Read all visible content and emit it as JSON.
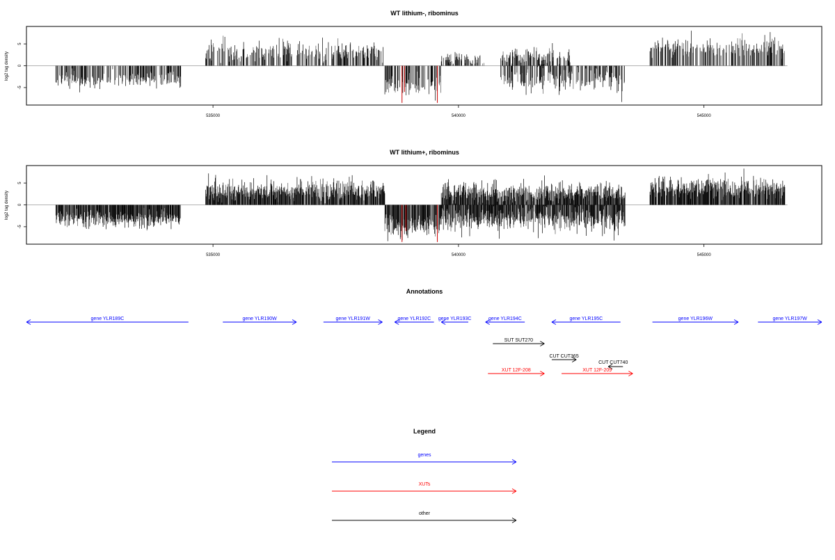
{
  "chart_data": [
    {
      "type": "bar",
      "title": "WT lithium-, ribominus",
      "ylabel": "log2 tag density",
      "xlim": [
        531200,
        547400
      ],
      "ylim": [
        -9,
        9
      ],
      "xticks": [
        535000,
        540000,
        545000
      ],
      "yticks": [
        -5,
        0,
        5
      ],
      "baseline": {
        "from": 531200,
        "to": 546700,
        "color": "#999999"
      },
      "bar_color": "#000000",
      "highlight_color": "#cc0000",
      "highlights": [
        {
          "x": 538850,
          "y": -8.5
        },
        {
          "x": 538900,
          "y": -6.0
        },
        {
          "x": 539570,
          "y": -8.5
        }
      ],
      "density": 0.55,
      "segments": [
        {
          "from": 531800,
          "to": 534350,
          "sign": -1,
          "amp": 3.2,
          "var": 1.2
        },
        {
          "from": 534850,
          "to": 538500,
          "sign": 1,
          "amp": 3.2,
          "var": 1.5
        },
        {
          "from": 538500,
          "to": 539650,
          "sign": -1,
          "amp": 4.5,
          "var": 1.5
        },
        {
          "from": 539650,
          "to": 540550,
          "sign": 1,
          "amp": 1.4,
          "var": 1.0
        },
        {
          "from": 540850,
          "to": 543400,
          "sign": -1,
          "amp": 3.2,
          "var": 1.6
        },
        {
          "from": 540850,
          "to": 542300,
          "sign": 1,
          "amp": 2.0,
          "var": 1.2
        },
        {
          "from": 543900,
          "to": 546650,
          "sign": 1,
          "amp": 4.0,
          "var": 1.4
        }
      ]
    },
    {
      "type": "bar",
      "title": "WT lithium+, ribominus",
      "ylabel": "log2 tag density",
      "xlim": [
        531200,
        547400
      ],
      "ylim": [
        -9,
        9
      ],
      "xticks": [
        535000,
        540000,
        545000
      ],
      "yticks": [
        -5,
        0,
        5
      ],
      "baseline": {
        "from": 531200,
        "to": 546700,
        "color": "#999999"
      },
      "bar_color": "#000000",
      "highlight_color": "#cc0000",
      "highlights": [
        {
          "x": 538850,
          "y": -8.5
        },
        {
          "x": 538930,
          "y": -6.0
        },
        {
          "x": 539570,
          "y": -8.5
        }
      ],
      "density": 0.9,
      "segments": [
        {
          "from": 531800,
          "to": 534350,
          "sign": -1,
          "amp": 3.2,
          "var": 1.3
        },
        {
          "from": 534850,
          "to": 538500,
          "sign": 1,
          "amp": 3.2,
          "var": 1.5
        },
        {
          "from": 538500,
          "to": 539650,
          "sign": -1,
          "amp": 4.8,
          "var": 1.5
        },
        {
          "from": 539650,
          "to": 543400,
          "sign": 1,
          "amp": 2.8,
          "var": 1.4
        },
        {
          "from": 539650,
          "to": 543400,
          "sign": -1,
          "amp": 3.2,
          "var": 1.6
        },
        {
          "from": 543900,
          "to": 546650,
          "sign": 1,
          "amp": 3.8,
          "var": 1.4
        }
      ]
    }
  ],
  "annotations": {
    "title": "Annotations",
    "features": [
      {
        "label": "gene YLR189C",
        "from": 531200,
        "to": 534500,
        "strand": "-",
        "row": 0,
        "kind": "gene"
      },
      {
        "label": "gene YLR190W",
        "from": 535200,
        "to": 536700,
        "strand": "+",
        "row": 0,
        "kind": "gene"
      },
      {
        "label": "gene YLR191W",
        "from": 537250,
        "to": 538450,
        "strand": "+",
        "row": 0,
        "kind": "gene"
      },
      {
        "label": "gene YLR192C",
        "from": 538700,
        "to": 539500,
        "strand": "-",
        "row": 0,
        "kind": "gene"
      },
      {
        "label": "gene YLR193C",
        "from": 539650,
        "to": 540200,
        "strand": "-",
        "row": 0,
        "kind": "gene"
      },
      {
        "label": "gene YLR194C",
        "from": 540550,
        "to": 541350,
        "strand": "-",
        "row": 0,
        "kind": "gene"
      },
      {
        "label": "gene YLR195C",
        "from": 541900,
        "to": 543300,
        "strand": "-",
        "row": 0,
        "kind": "gene"
      },
      {
        "label": "gene YLR196W",
        "from": 543950,
        "to": 545700,
        "strand": "+",
        "row": 0,
        "kind": "gene"
      },
      {
        "label": "gene YLR197W",
        "from": 546100,
        "to": 547400,
        "strand": "+",
        "row": 0,
        "kind": "gene"
      },
      {
        "label": "SUT SUT270",
        "from": 540700,
        "to": 541750,
        "strand": "+",
        "row": 1,
        "kind": "other"
      },
      {
        "label": "CUT CUT365",
        "from": 541900,
        "to": 542400,
        "strand": "+",
        "row": 2,
        "kind": "other"
      },
      {
        "label": "CUT CUT740",
        "from": 543050,
        "to": 543350,
        "strand": "-",
        "row": 3,
        "kind": "other"
      },
      {
        "label": "XUT 12F-208",
        "from": 540600,
        "to": 541750,
        "strand": "+",
        "row": 4,
        "kind": "xut"
      },
      {
        "label": "XUT 12F-209",
        "from": 542100,
        "to": 543550,
        "strand": "+",
        "row": 4,
        "kind": "xut"
      }
    ]
  },
  "legend": {
    "title": "Legend",
    "items": [
      {
        "label": "genes",
        "kind": "gene"
      },
      {
        "label": "XUTs",
        "kind": "xut"
      },
      {
        "label": "other",
        "kind": "other"
      }
    ]
  },
  "colors": {
    "gene": "#0000ff",
    "xut": "#ff0000",
    "other": "#000000"
  }
}
